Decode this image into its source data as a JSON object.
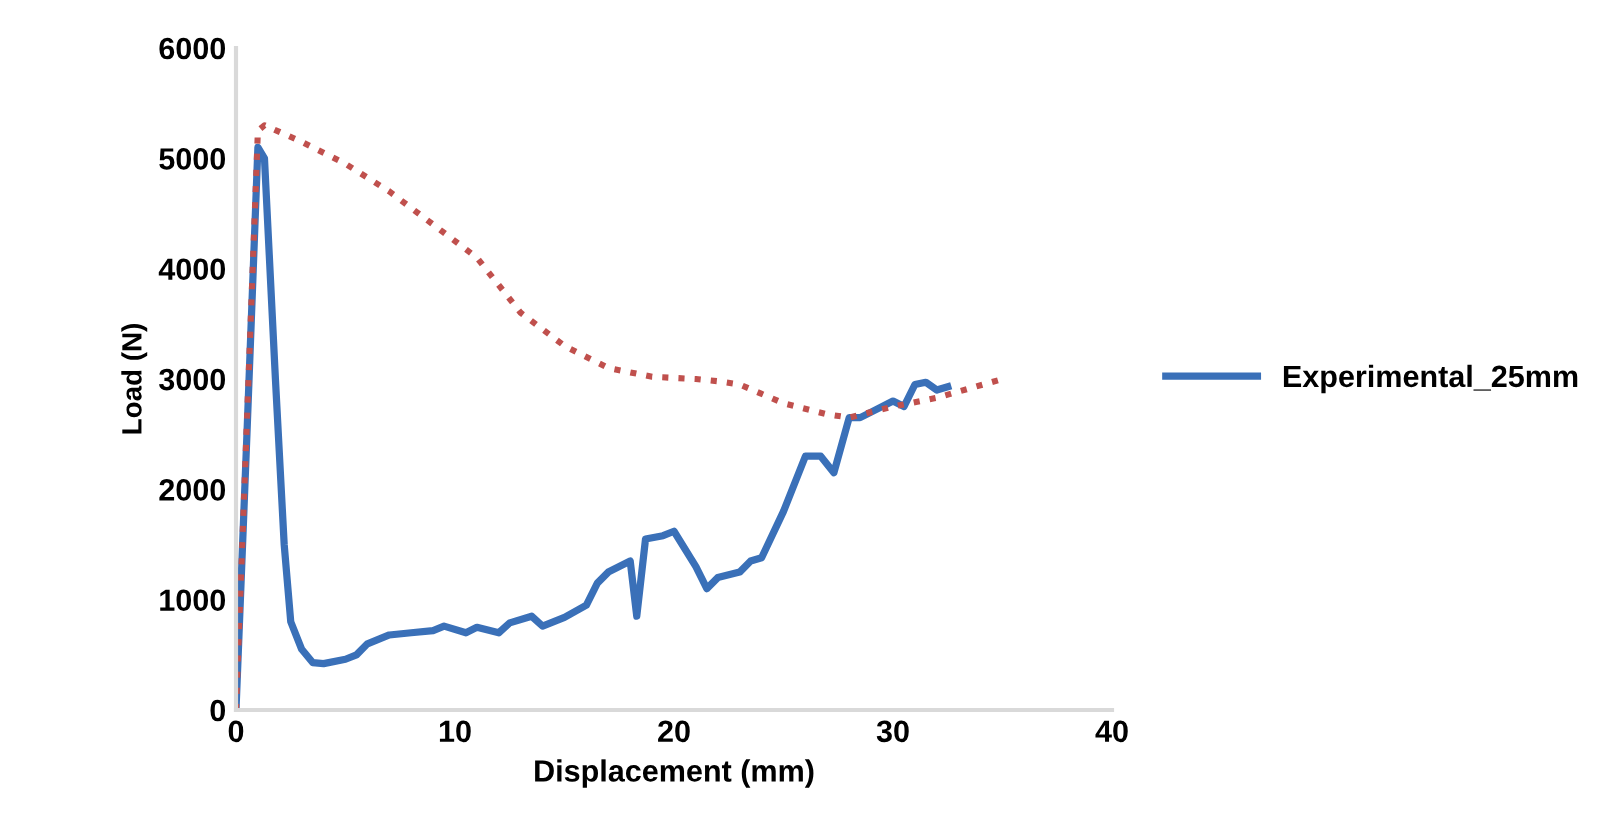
{
  "chart_data": {
    "type": "line",
    "xlabel": "Displacement (mm)",
    "ylabel": "Load (N)",
    "xlim": [
      0,
      40
    ],
    "xticks": [
      0,
      10,
      20,
      30,
      40
    ],
    "ylim": [
      0,
      6000
    ],
    "yticks": [
      0,
      1000,
      2000,
      3000,
      4000,
      5000,
      6000
    ],
    "legend": "right",
    "marker": "none",
    "series": [
      {
        "name": "Experimental_25mm",
        "color": "#3a70b8",
        "line_style": "solid",
        "x": [
          0,
          0.5,
          1,
          1.3,
          1.8,
          2.2,
          2.5,
          3,
          3.5,
          4,
          5,
          5.5,
          6,
          7,
          8,
          9,
          9.5,
          10.5,
          11,
          12,
          12.5,
          13.5,
          14,
          15,
          16,
          16.5,
          17,
          17.5,
          18,
          18.3,
          18.7,
          19.5,
          20,
          21,
          21.5,
          22,
          23,
          23.5,
          24,
          25,
          26,
          26.7,
          27.3,
          28,
          28.5,
          29,
          30,
          30.5,
          31,
          31.5,
          32,
          32.5
        ],
        "values": [
          0,
          2500,
          5100,
          5000,
          3000,
          1500,
          800,
          550,
          430,
          420,
          460,
          500,
          600,
          680,
          700,
          720,
          760,
          700,
          750,
          700,
          790,
          850,
          760,
          840,
          950,
          1150,
          1250,
          1300,
          1350,
          850,
          1550,
          1580,
          1620,
          1300,
          1100,
          1200,
          1250,
          1350,
          1380,
          1800,
          2300,
          2300,
          2150,
          2650,
          2650,
          2700,
          2800,
          2750,
          2950,
          2970,
          2900,
          2930
        ]
      },
      {
        "color": "#c0504d",
        "line_style": "dotted",
        "x": [
          0,
          1,
          1.3,
          3,
          5,
          7,
          9,
          11,
          13,
          15,
          17,
          19,
          21,
          22,
          23,
          25,
          27,
          28,
          30,
          32,
          35
        ],
        "values": [
          0,
          5250,
          5300,
          5150,
          4950,
          4700,
          4400,
          4100,
          3600,
          3300,
          3100,
          3020,
          3000,
          2980,
          2950,
          2780,
          2680,
          2650,
          2750,
          2830,
          3000
        ]
      }
    ]
  }
}
